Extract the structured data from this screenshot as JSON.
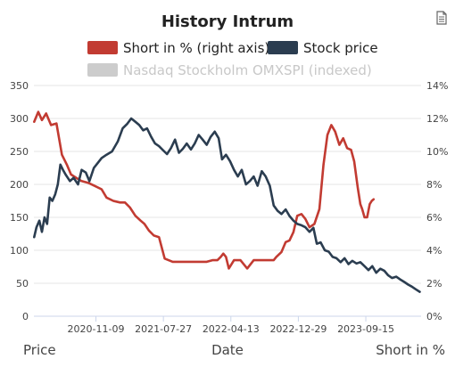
{
  "menu_icon": "document-icon",
  "chart_data": {
    "type": "line",
    "title": "History Intrum",
    "xlabel": "Date",
    "ylabel_left": "Price",
    "ylabel_right": "Short in %",
    "x_tick_labels": [
      "2020-11-09",
      "2021-07-27",
      "2022-04-13",
      "2022-12-29",
      "2023-09-15"
    ],
    "left_axis": {
      "ticks": [
        0,
        50,
        100,
        150,
        200,
        250,
        300,
        350
      ],
      "ylim": [
        0,
        350
      ]
    },
    "right_axis": {
      "ticks": [
        "0%",
        "2%",
        "4%",
        "6%",
        "8%",
        "10%",
        "12%",
        "14%"
      ],
      "ylim": [
        0,
        14
      ]
    },
    "xlim": [
      "2020-03-15",
      "2024-04-15"
    ],
    "grid": true,
    "legend_position": "top",
    "series": [
      {
        "name": "Short in % (right axis)",
        "axis": "right",
        "color": "#c23b32",
        "visible": true,
        "x": [
          "2020-03-16",
          "2020-04-01",
          "2020-04-15",
          "2020-05-01",
          "2020-05-20",
          "2020-06-10",
          "2020-07-01",
          "2020-07-20",
          "2020-08-05",
          "2020-08-25",
          "2020-09-15",
          "2020-10-10",
          "2020-11-05",
          "2020-12-01",
          "2020-12-20",
          "2021-01-15",
          "2021-02-10",
          "2021-03-01",
          "2021-03-20",
          "2021-04-10",
          "2021-04-30",
          "2021-05-15",
          "2021-06-01",
          "2021-06-20",
          "2021-07-10",
          "2021-08-01",
          "2021-09-01",
          "2021-10-01",
          "2021-11-01",
          "2021-12-01",
          "2022-01-10",
          "2022-02-01",
          "2022-02-20",
          "2022-03-05",
          "2022-03-15",
          "2022-03-25",
          "2022-04-05",
          "2022-04-25",
          "2022-05-20",
          "2022-06-15",
          "2022-07-10",
          "2022-08-05",
          "2022-09-01",
          "2022-09-25",
          "2022-10-05",
          "2022-10-25",
          "2022-11-10",
          "2022-11-25",
          "2022-12-10",
          "2022-12-25",
          "2023-01-10",
          "2023-01-25",
          "2023-02-10",
          "2023-03-01",
          "2023-03-20",
          "2023-04-05",
          "2023-04-20",
          "2023-05-05",
          "2023-05-20",
          "2023-06-05",
          "2023-06-20",
          "2023-07-05",
          "2023-07-20",
          "2023-08-01",
          "2023-08-15",
          "2023-08-25",
          "2023-09-01",
          "2023-09-10",
          "2023-09-20",
          "2023-09-30",
          "2023-10-08",
          "2023-10-15"
        ],
        "y": [
          11.8,
          12.4,
          11.9,
          12.3,
          11.6,
          11.7,
          9.8,
          9.2,
          8.6,
          8.4,
          8.2,
          8.1,
          7.9,
          7.7,
          7.2,
          7.0,
          6.9,
          6.9,
          6.6,
          6.1,
          5.8,
          5.6,
          5.2,
          4.9,
          4.8,
          3.5,
          3.3,
          3.3,
          3.3,
          3.3,
          3.3,
          3.4,
          3.4,
          3.6,
          3.8,
          3.6,
          2.9,
          3.4,
          3.4,
          2.9,
          3.4,
          3.4,
          3.4,
          3.4,
          3.6,
          3.9,
          4.5,
          4.6,
          5.1,
          6.1,
          6.2,
          5.9,
          5.4,
          5.6,
          6.5,
          9.2,
          11.0,
          11.6,
          11.2,
          10.4,
          10.8,
          10.2,
          10.1,
          9.4,
          7.8,
          6.8,
          6.5,
          6.0,
          6.0,
          6.8,
          7.0,
          7.1
        ]
      },
      {
        "name": "Stock price",
        "axis": "left",
        "color": "#2b3d50",
        "visible": true,
        "x": [
          "2020-03-16",
          "2020-03-25",
          "2020-04-05",
          "2020-04-15",
          "2020-04-25",
          "2020-05-05",
          "2020-05-15",
          "2020-05-25",
          "2020-06-05",
          "2020-06-15",
          "2020-06-25",
          "2020-07-05",
          "2020-07-15",
          "2020-08-01",
          "2020-08-15",
          "2020-09-01",
          "2020-09-15",
          "2020-10-01",
          "2020-10-15",
          "2020-11-01",
          "2020-11-15",
          "2020-12-01",
          "2020-12-20",
          "2021-01-10",
          "2021-02-01",
          "2021-02-20",
          "2021-03-10",
          "2021-03-25",
          "2021-04-10",
          "2021-04-25",
          "2021-05-10",
          "2021-05-25",
          "2021-06-10",
          "2021-06-25",
          "2021-07-10",
          "2021-07-25",
          "2021-08-10",
          "2021-08-25",
          "2021-09-10",
          "2021-09-25",
          "2021-10-10",
          "2021-10-25",
          "2021-11-10",
          "2021-11-25",
          "2021-12-10",
          "2021-12-25",
          "2022-01-10",
          "2022-01-25",
          "2022-02-10",
          "2022-02-25",
          "2022-03-10",
          "2022-03-25",
          "2022-04-10",
          "2022-04-25",
          "2022-05-10",
          "2022-05-25",
          "2022-06-10",
          "2022-06-25",
          "2022-07-10",
          "2022-07-25",
          "2022-08-10",
          "2022-08-25",
          "2022-09-10",
          "2022-09-25",
          "2022-10-10",
          "2022-10-25",
          "2022-11-10",
          "2022-11-25",
          "2022-12-10",
          "2022-12-25",
          "2023-01-10",
          "2023-01-25",
          "2023-02-10",
          "2023-02-25",
          "2023-03-10",
          "2023-03-25",
          "2023-04-10",
          "2023-04-25",
          "2023-05-10",
          "2023-05-25",
          "2023-06-10",
          "2023-06-25",
          "2023-07-10",
          "2023-07-25",
          "2023-08-10",
          "2023-08-25",
          "2023-09-10",
          "2023-09-25",
          "2023-10-10",
          "2023-10-25",
          "2023-11-10",
          "2023-11-25",
          "2023-12-10",
          "2023-12-25",
          "2024-01-10",
          "2024-01-25",
          "2024-02-10",
          "2024-02-25",
          "2024-03-10",
          "2024-03-25",
          "2024-04-10"
        ],
        "y": [
          120,
          135,
          145,
          128,
          150,
          140,
          180,
          175,
          185,
          200,
          230,
          222,
          215,
          205,
          210,
          200,
          222,
          218,
          205,
          225,
          232,
          240,
          245,
          250,
          265,
          285,
          292,
          300,
          295,
          290,
          282,
          285,
          272,
          262,
          258,
          252,
          246,
          255,
          268,
          248,
          254,
          262,
          253,
          262,
          275,
          268,
          260,
          272,
          280,
          270,
          238,
          245,
          235,
          222,
          212,
          222,
          200,
          205,
          212,
          198,
          220,
          212,
          198,
          168,
          160,
          155,
          162,
          152,
          145,
          140,
          138,
          135,
          128,
          134,
          110,
          112,
          100,
          98,
          90,
          88,
          82,
          88,
          79,
          84,
          80,
          82,
          76,
          70,
          76,
          66,
          72,
          69,
          62,
          58,
          60,
          56,
          52,
          48,
          45,
          41,
          37
        ]
      },
      {
        "name": "Nasdaq Stockholm OMXSPI (indexed)",
        "axis": "left",
        "color": "#c8c8c8",
        "visible": false
      }
    ]
  }
}
